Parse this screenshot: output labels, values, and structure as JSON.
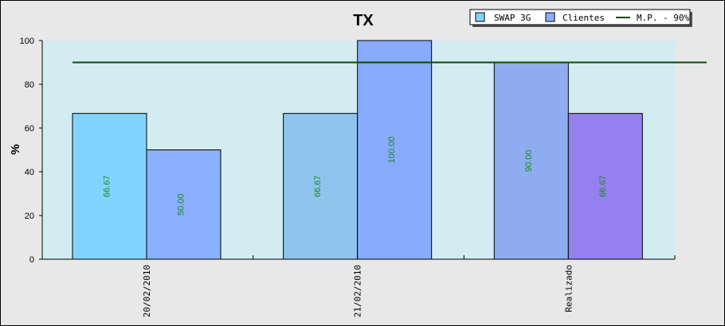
{
  "chart_data": {
    "type": "bar",
    "title": "TX",
    "ylabel": "%",
    "xlabel": "",
    "ylim": [
      0,
      100
    ],
    "yticks": [
      0,
      20,
      40,
      60,
      80,
      100
    ],
    "categories": [
      "20/02/2010",
      "21/02/2010",
      "Realizado"
    ],
    "series": [
      {
        "name": "SWAP 3G",
        "values": [
          66.67,
          66.67,
          90.0
        ],
        "labels": [
          "66.67",
          "66.67",
          "90.00"
        ]
      },
      {
        "name": "Clientes",
        "values": [
          50.0,
          100.0,
          66.67
        ],
        "labels": [
          "50.00",
          "100.00",
          "66.67"
        ]
      }
    ],
    "bar_colors": [
      [
        "#80d4ff",
        "#8ab0ff"
      ],
      [
        "#90c4ee",
        "#88aaff"
      ],
      [
        "#90acf0",
        "#9480ee"
      ]
    ],
    "legend_colors": [
      "#80d4ff",
      "#8ab0ff"
    ],
    "reference_line": {
      "name": "M.P. - 90%",
      "value": 90,
      "color": "#0a4a0a"
    },
    "legend_position": "top-right",
    "plot_background": "#d2ecf2",
    "grid": false
  }
}
